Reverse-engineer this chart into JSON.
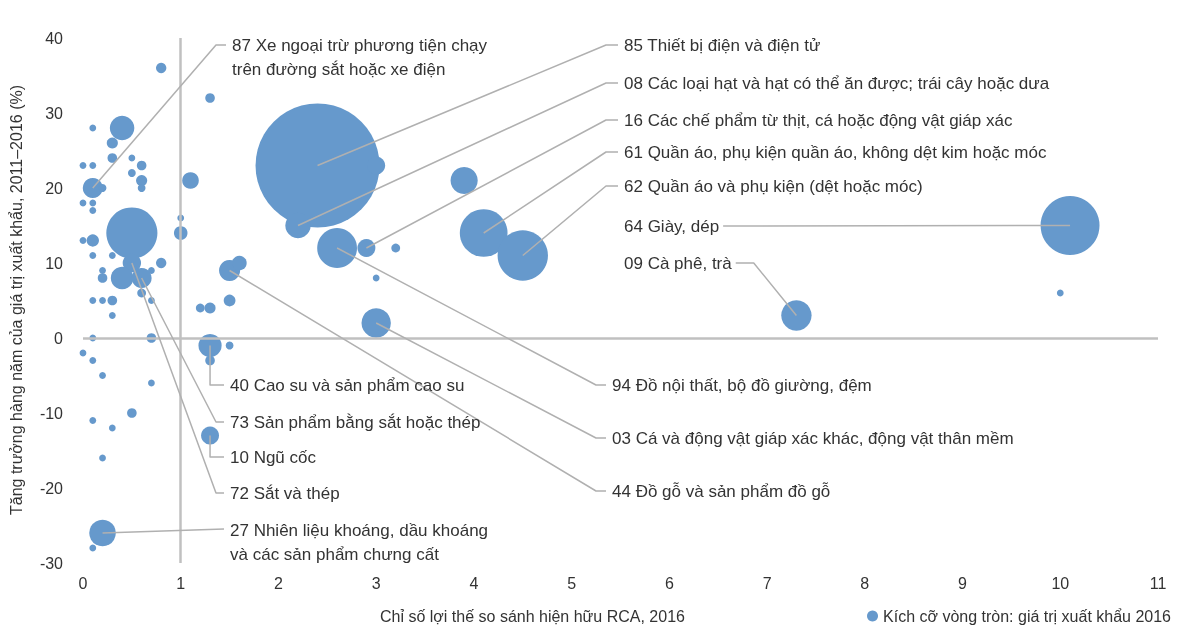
{
  "chart_data": {
    "type": "bubble",
    "xlabel": "Chỉ số lợi thế so sánh hiện hữu RCA, 2016",
    "ylabel": "Tăng trưởng hàng năm của giá trị xuất khẩu, 2011–2016 (%)",
    "xlim": [
      0,
      11
    ],
    "xticks": [
      0,
      1,
      2,
      3,
      4,
      5,
      6,
      7,
      8,
      9,
      10,
      11
    ],
    "ylim": [
      -30,
      40
    ],
    "yticks": [
      -30,
      -20,
      -10,
      0,
      10,
      20,
      30,
      40
    ],
    "grid": false,
    "legend": "bottom right",
    "ref_lines": [
      {
        "axis": "x",
        "value": 1,
        "color": "#c0c0c0"
      },
      {
        "axis": "y",
        "value": 0,
        "color": "#c0c0c0"
      }
    ],
    "series": [
      {
        "name": "Kích cỡ vòng tròn: giá trị xuất khẩu 2016",
        "color": "#6699cc",
        "x": [
          0.8,
          1.3,
          0.4,
          0.1,
          0.3,
          0.3,
          0.5,
          0.6,
          0.5,
          0.6,
          0.6,
          0.0,
          0.1,
          0.1,
          0.2,
          0.0,
          0.1,
          0.1,
          1.1,
          1.0,
          1.0,
          0.5,
          0.1,
          0.0,
          0.1,
          0.3,
          0.5,
          0.8,
          0.7,
          0.2,
          0.4,
          0.6,
          0.2,
          1.5,
          1.6,
          0.6,
          0.1,
          0.2,
          0.3,
          0.3,
          0.7,
          1.5,
          1.2,
          1.3,
          0.1,
          0.7,
          0.1,
          0.0,
          1.3,
          1.3,
          1.5,
          0.2,
          0.7,
          0.5,
          0.1,
          0.3,
          1.3,
          0.2,
          0.2,
          0.1,
          2.4,
          3.0,
          3.9,
          2.2,
          4.1,
          4.5,
          2.6,
          2.9,
          3.2,
          3.0,
          3.0,
          10.1,
          10.0,
          7.3
        ],
        "values": [
          36,
          32,
          28,
          28,
          26,
          24,
          24,
          23,
          22,
          21,
          20,
          23,
          23,
          20,
          20,
          18,
          18,
          17,
          21,
          16,
          14,
          14,
          13,
          13,
          11,
          11,
          10,
          10,
          9,
          9,
          8,
          8,
          8,
          9,
          10,
          6,
          5,
          5,
          5,
          3,
          5,
          5,
          4,
          4,
          0,
          0,
          -3,
          -2,
          -1,
          -3,
          -1,
          -5,
          -6,
          -10,
          -11,
          -12,
          -13,
          -16,
          -26,
          -28,
          23,
          23,
          21,
          15,
          14,
          11,
          12,
          12,
          12,
          8,
          2,
          15,
          6,
          3
        ],
        "sizes": [
          0.007,
          0.006,
          0.039,
          0.003,
          0.008,
          0.006,
          0.003,
          0.006,
          0.004,
          0.008,
          0.004,
          0.003,
          0.003,
          0.026,
          0.004,
          0.003,
          0.003,
          0.003,
          0.018,
          0.003,
          0.012,
          0.17,
          0.01,
          0.003,
          0.003,
          0.003,
          0.022,
          0.007,
          0.003,
          0.003,
          0.033,
          0.026,
          0.006,
          0.029,
          0.014,
          0.005,
          0.003,
          0.003,
          0.006,
          0.003,
          0.003,
          0.009,
          0.005,
          0.008,
          0.003,
          0.006,
          0.003,
          0.003,
          0.035,
          0.006,
          0.004,
          0.003,
          0.003,
          0.006,
          0.003,
          0.003,
          0.021,
          0.003,
          0.046,
          0.003,
          1,
          0.021,
          0.048,
          0.042,
          0.148,
          0.165,
          0.103,
          0.021,
          0.005,
          0.003,
          0.056,
          0.226,
          0.003,
          0.06
        ]
      }
    ],
    "annotations": [
      {
        "text": "87 Xe ngoại trừ phương tiện chạy\ntrên đường sắt hoặc xe điện",
        "x": 0.1,
        "y": 20
      },
      {
        "text": "85 Thiết bị điện và điện tử",
        "x": 2.4,
        "y": 23
      },
      {
        "text": "08 Các loại hạt và hạt có thể ăn được; trái cây hoặc dưa",
        "x": 2.2,
        "y": 15
      },
      {
        "text": "16 Các chế phẩm từ thịt, cá hoặc động vật giáp xác",
        "x": 2.9,
        "y": 12
      },
      {
        "text": "61 Quần áo, phụ kiện quần áo, không dệt kim hoặc móc",
        "x": 4.1,
        "y": 14
      },
      {
        "text": "62 Quần áo và phụ kiện (dệt hoặc móc)",
        "x": 4.5,
        "y": 11
      },
      {
        "text": "64 Giày, dép",
        "x": 10.1,
        "y": 15
      },
      {
        "text": "09 Cà phê, trà",
        "x": 7.3,
        "y": 3
      },
      {
        "text": "40 Cao su và sản phẩm cao su",
        "x": 1.3,
        "y": -1
      },
      {
        "text": "73 Sản phẩm bằng sắt hoặc thép",
        "x": 0.6,
        "y": 8
      },
      {
        "text": "10 Ngũ cốc",
        "x": 1.3,
        "y": -13
      },
      {
        "text": "72 Sắt và thép",
        "x": 0.5,
        "y": 10
      },
      {
        "text": "27 Nhiên liệu khoáng, dầu khoáng\nvà các sản phẩm chưng cất",
        "x": 0.2,
        "y": -26
      },
      {
        "text": "94 Đồ nội thất, bộ đồ giường, đệm",
        "x": 2.6,
        "y": 12
      },
      {
        "text": "03 Cá và động vật giáp xác khác, động vật thân mềm",
        "x": 3.0,
        "y": 2
      },
      {
        "text": "44 Đồ gỗ và sản phẩm đồ gỗ",
        "x": 1.5,
        "y": 9
      }
    ]
  }
}
